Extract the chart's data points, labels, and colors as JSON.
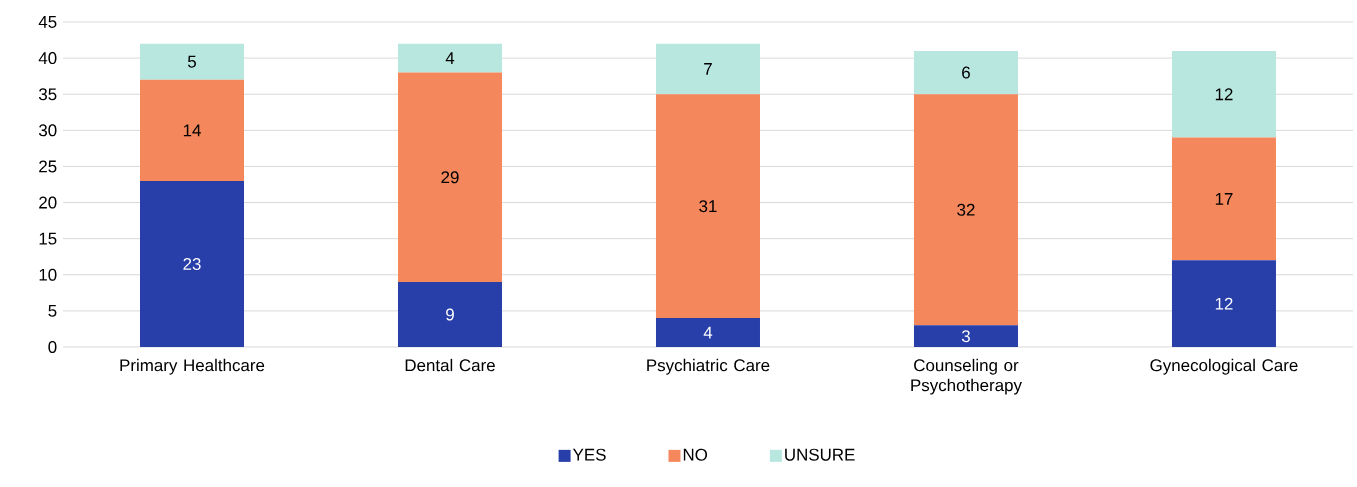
{
  "chart_data": {
    "type": "bar",
    "stacked": true,
    "categories": [
      "Primary Healthcare",
      "Dental Care",
      "Psychiatric Care",
      "Counseling or Psychotherapy",
      "Gynecological Care"
    ],
    "series": [
      {
        "name": "YES",
        "color": "#283ea8",
        "values": [
          23,
          9,
          4,
          3,
          12
        ]
      },
      {
        "name": "NO",
        "color": "#f5875c",
        "values": [
          14,
          29,
          31,
          32,
          17
        ]
      },
      {
        "name": "UNSURE",
        "color": "#b8e7df",
        "values": [
          5,
          4,
          7,
          6,
          12
        ]
      }
    ],
    "ylim": [
      0,
      45
    ],
    "yticks": [
      0,
      5,
      10,
      15,
      20,
      25,
      30,
      35,
      40,
      45
    ],
    "grid": "y",
    "legend": "bottom",
    "data_labels": true
  }
}
